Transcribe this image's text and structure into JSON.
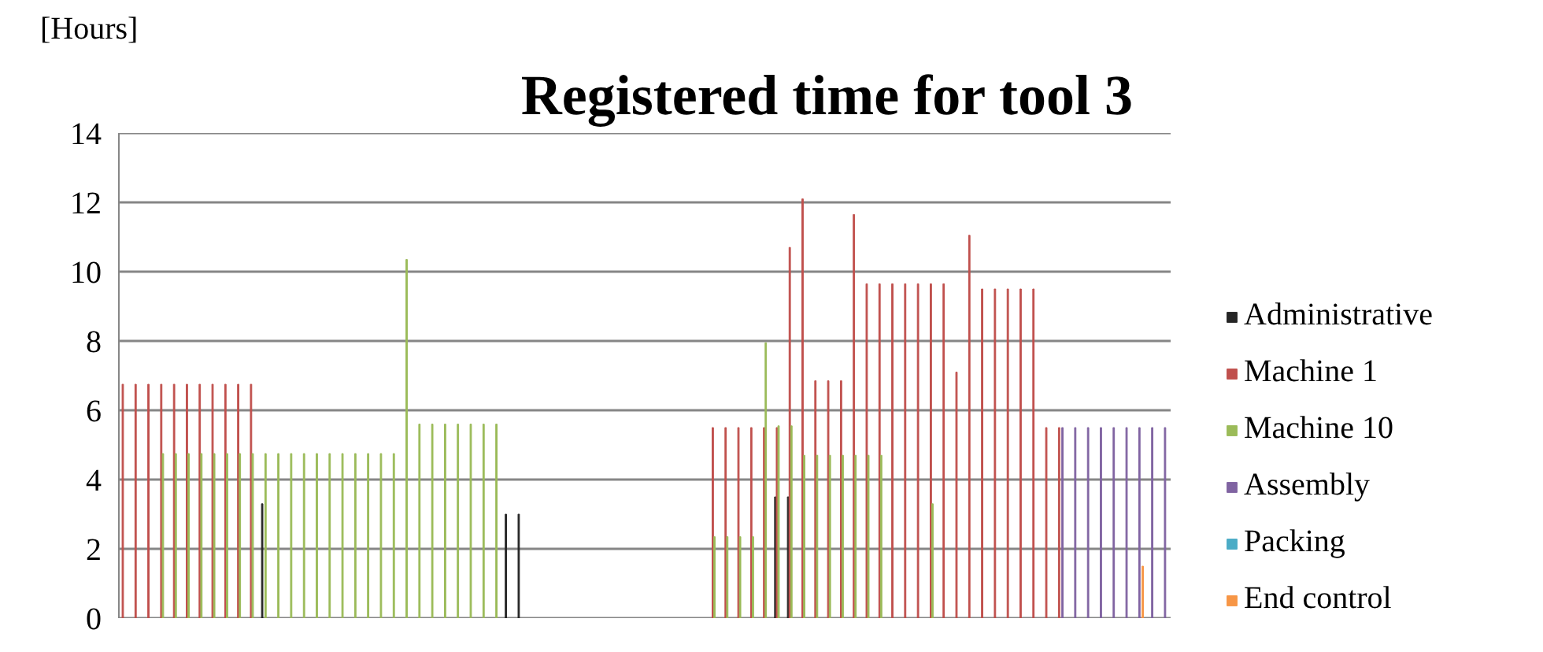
{
  "chart_data": {
    "type": "bar",
    "title": "Registered time for tool 3",
    "ylabel": "[Hours]",
    "categories": [
      null,
      null,
      null,
      null,
      null,
      null,
      null,
      null,
      null,
      null,
      null,
      null,
      null,
      null,
      null,
      null,
      null,
      null,
      null,
      null,
      null,
      null,
      null,
      null,
      null,
      null,
      null,
      null,
      null,
      null,
      null,
      null,
      null,
      null,
      null,
      null,
      null,
      null,
      null,
      null,
      null,
      null,
      null,
      null,
      null,
      null,
      null,
      null,
      null,
      null,
      null,
      null,
      null,
      null,
      null,
      null,
      null,
      null,
      null,
      null,
      null,
      null,
      null,
      null,
      null,
      null,
      null,
      null,
      null,
      null,
      null,
      null,
      null,
      null,
      null,
      null,
      null,
      null,
      null,
      null,
      null,
      null
    ],
    "series": [
      {
        "name": "Administrative",
        "color": "#262626",
        "values": [
          null,
          null,
          null,
          null,
          null,
          null,
          null,
          null,
          null,
          null,
          null,
          3.3,
          null,
          null,
          null,
          null,
          null,
          null,
          null,
          null,
          null,
          null,
          null,
          null,
          null,
          null,
          null,
          null,
          null,
          null,
          3.0,
          3.0,
          null,
          null,
          null,
          null,
          null,
          null,
          null,
          null,
          null,
          null,
          null,
          null,
          null,
          null,
          null,
          null,
          null,
          null,
          null,
          3.5,
          3.5,
          null,
          null,
          null,
          null,
          null,
          null,
          null,
          null,
          null,
          null,
          null,
          null,
          null,
          null,
          null,
          null,
          null,
          null,
          null,
          null,
          null,
          null,
          null,
          null,
          null,
          null,
          null,
          null,
          null
        ]
      },
      {
        "name": "Machine 1",
        "color": "#c0504d",
        "values": [
          6.75,
          6.75,
          6.75,
          6.75,
          6.75,
          6.75,
          6.75,
          6.75,
          6.75,
          6.75,
          6.75,
          null,
          null,
          null,
          null,
          null,
          null,
          null,
          null,
          null,
          null,
          null,
          null,
          null,
          null,
          null,
          null,
          null,
          null,
          null,
          null,
          null,
          null,
          null,
          null,
          null,
          null,
          null,
          null,
          null,
          null,
          null,
          null,
          null,
          null,
          null,
          5.5,
          5.5,
          5.5,
          5.5,
          5.5,
          5.5,
          10.7,
          12.1,
          6.85,
          6.85,
          6.85,
          11.65,
          9.65,
          9.65,
          9.65,
          9.65,
          9.65,
          9.65,
          9.65,
          7.1,
          11.05,
          9.5,
          9.5,
          9.5,
          9.5,
          9.5,
          5.5,
          5.5,
          null,
          null,
          null,
          null,
          null,
          null,
          null,
          null
        ]
      },
      {
        "name": "Machine 10",
        "color": "#9bbb59",
        "values": [
          null,
          null,
          null,
          4.75,
          4.75,
          4.75,
          4.75,
          4.75,
          4.75,
          4.75,
          4.75,
          4.75,
          4.75,
          4.75,
          4.75,
          4.75,
          4.75,
          4.75,
          4.75,
          4.75,
          4.75,
          4.75,
          10.35,
          5.6,
          5.6,
          5.6,
          5.6,
          5.6,
          5.6,
          5.6,
          null,
          null,
          null,
          null,
          null,
          null,
          null,
          null,
          null,
          null,
          null,
          null,
          null,
          null,
          null,
          null,
          2.35,
          2.35,
          2.35,
          2.35,
          7.95,
          5.55,
          5.55,
          4.7,
          4.7,
          4.7,
          4.7,
          4.7,
          4.7,
          4.7,
          null,
          null,
          null,
          3.3,
          null,
          null,
          null,
          null,
          null,
          null,
          null,
          null,
          null,
          null,
          null,
          null,
          null,
          null,
          null,
          null,
          null,
          null
        ]
      },
      {
        "name": "Assembly",
        "color": "#8064a2",
        "values": [
          null,
          null,
          null,
          null,
          null,
          null,
          null,
          null,
          null,
          null,
          null,
          null,
          null,
          null,
          null,
          null,
          null,
          null,
          null,
          null,
          null,
          null,
          null,
          null,
          null,
          null,
          null,
          null,
          null,
          null,
          null,
          null,
          null,
          null,
          null,
          null,
          null,
          null,
          null,
          null,
          null,
          null,
          null,
          null,
          null,
          null,
          null,
          null,
          null,
          null,
          null,
          null,
          null,
          null,
          null,
          null,
          null,
          null,
          null,
          null,
          null,
          null,
          null,
          null,
          null,
          null,
          null,
          null,
          null,
          null,
          null,
          null,
          null,
          5.5,
          5.5,
          5.5,
          5.5,
          5.5,
          5.5,
          5.5,
          5.5,
          5.5
        ]
      },
      {
        "name": "Packing",
        "color": "#4bacc6",
        "values": [
          null,
          null,
          null,
          null,
          null,
          null,
          null,
          null,
          null,
          null,
          null,
          null,
          null,
          null,
          null,
          null,
          null,
          null,
          null,
          null,
          null,
          null,
          null,
          null,
          null,
          null,
          null,
          null,
          null,
          null,
          null,
          null,
          null,
          null,
          null,
          null,
          null,
          null,
          null,
          null,
          null,
          null,
          null,
          null,
          null,
          null,
          null,
          null,
          null,
          null,
          null,
          null,
          null,
          null,
          null,
          null,
          null,
          null,
          null,
          null,
          null,
          null,
          null,
          null,
          null,
          null,
          null,
          null,
          null,
          null,
          null,
          null,
          null,
          null,
          null,
          null,
          null,
          null,
          null,
          null,
          null,
          null
        ]
      },
      {
        "name": "End control",
        "color": "#f79646",
        "values": [
          null,
          null,
          null,
          null,
          null,
          null,
          null,
          null,
          null,
          null,
          null,
          null,
          null,
          null,
          null,
          null,
          null,
          null,
          null,
          null,
          null,
          null,
          null,
          null,
          null,
          null,
          null,
          null,
          null,
          null,
          null,
          null,
          null,
          null,
          null,
          null,
          null,
          null,
          null,
          null,
          null,
          null,
          null,
          null,
          null,
          null,
          null,
          null,
          null,
          null,
          null,
          null,
          null,
          null,
          null,
          null,
          null,
          null,
          null,
          null,
          null,
          null,
          null,
          null,
          null,
          null,
          null,
          null,
          null,
          null,
          null,
          null,
          null,
          null,
          null,
          null,
          null,
          null,
          null,
          1.5,
          null,
          null
        ]
      }
    ],
    "ylim": [
      0,
      14
    ],
    "yticks": [
      0,
      2,
      4,
      6,
      8,
      10,
      12,
      14
    ],
    "grid": "y",
    "legend": "right"
  }
}
